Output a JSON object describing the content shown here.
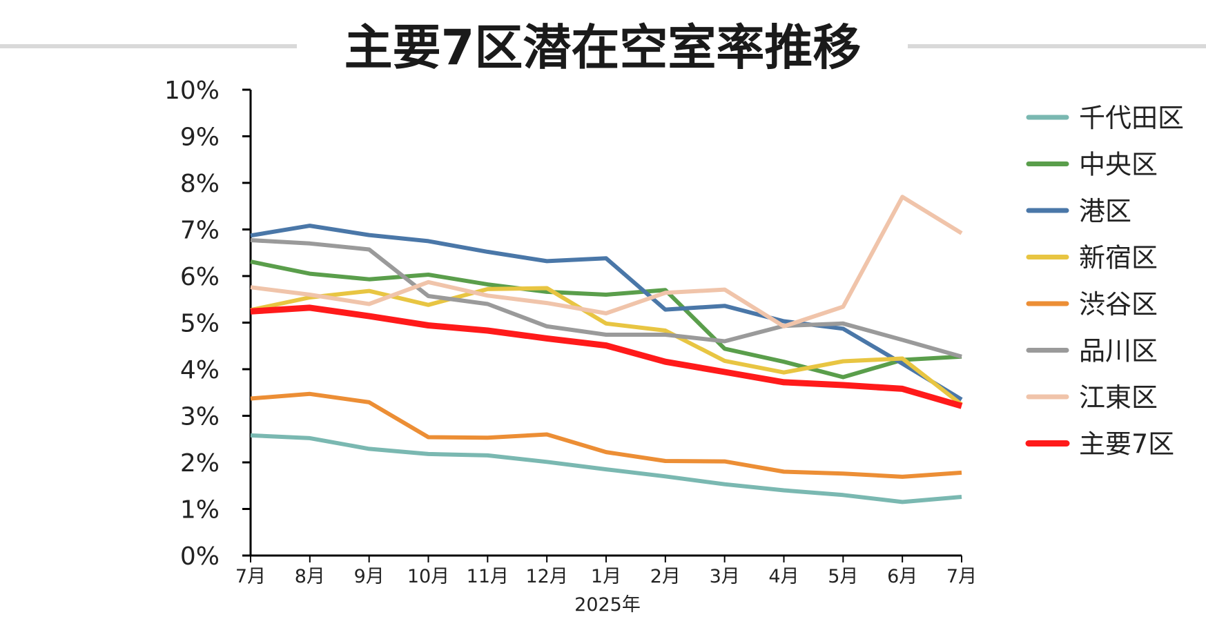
{
  "chart_data": {
    "type": "line",
    "title": "主要7区潜在空室率推移",
    "categories": [
      "7月",
      "8月",
      "9月",
      "10月",
      "11月",
      "12月",
      "1月",
      "2月",
      "3月",
      "4月",
      "5月",
      "6月",
      "7月"
    ],
    "xsublabel": "2025年",
    "ylim": [
      0,
      10
    ],
    "yticks": [
      "0%",
      "1%",
      "2%",
      "3%",
      "4%",
      "5%",
      "6%",
      "7%",
      "8%",
      "9%",
      "10%"
    ],
    "grid": false,
    "legend_position": "right",
    "series": [
      {
        "name": "千代田区",
        "color": "#7ab8b1",
        "values": [
          2.58,
          2.52,
          2.29,
          2.18,
          2.15,
          2.01,
          1.85,
          1.7,
          1.53,
          1.4,
          1.3,
          1.15,
          1.26
        ]
      },
      {
        "name": "中央区",
        "color": "#5a9e4b",
        "values": [
          6.31,
          6.05,
          5.93,
          6.03,
          5.82,
          5.66,
          5.6,
          5.7,
          4.44,
          4.16,
          3.83,
          4.2,
          4.27
        ]
      },
      {
        "name": "港区",
        "color": "#4a77a8",
        "values": [
          6.87,
          7.08,
          6.88,
          6.75,
          6.52,
          6.32,
          6.38,
          5.28,
          5.36,
          5.03,
          4.87,
          4.12,
          3.35
        ]
      },
      {
        "name": "新宿区",
        "color": "#e8c542",
        "values": [
          5.27,
          5.54,
          5.68,
          5.38,
          5.72,
          5.74,
          4.98,
          4.83,
          4.18,
          3.93,
          4.17,
          4.23,
          3.24
        ]
      },
      {
        "name": "渋谷区",
        "color": "#ec8e35",
        "values": [
          3.37,
          3.47,
          3.29,
          2.54,
          2.53,
          2.6,
          2.22,
          2.03,
          2.02,
          1.8,
          1.76,
          1.69,
          1.78
        ]
      },
      {
        "name": "品川区",
        "color": "#9a9a9a",
        "values": [
          6.77,
          6.7,
          6.57,
          5.57,
          5.4,
          4.92,
          4.74,
          4.74,
          4.6,
          4.93,
          4.98,
          4.63,
          4.27
        ]
      },
      {
        "name": "江東区",
        "color": "#f0c4aa",
        "values": [
          5.76,
          5.6,
          5.4,
          5.87,
          5.58,
          5.42,
          5.2,
          5.64,
          5.71,
          4.92,
          5.34,
          7.7,
          6.92
        ]
      },
      {
        "name": "主要7区",
        "color": "#ff1a1a",
        "values": [
          5.24,
          5.32,
          5.14,
          4.94,
          4.83,
          4.66,
          4.51,
          4.16,
          3.94,
          3.72,
          3.66,
          3.58,
          3.21
        ]
      }
    ]
  }
}
